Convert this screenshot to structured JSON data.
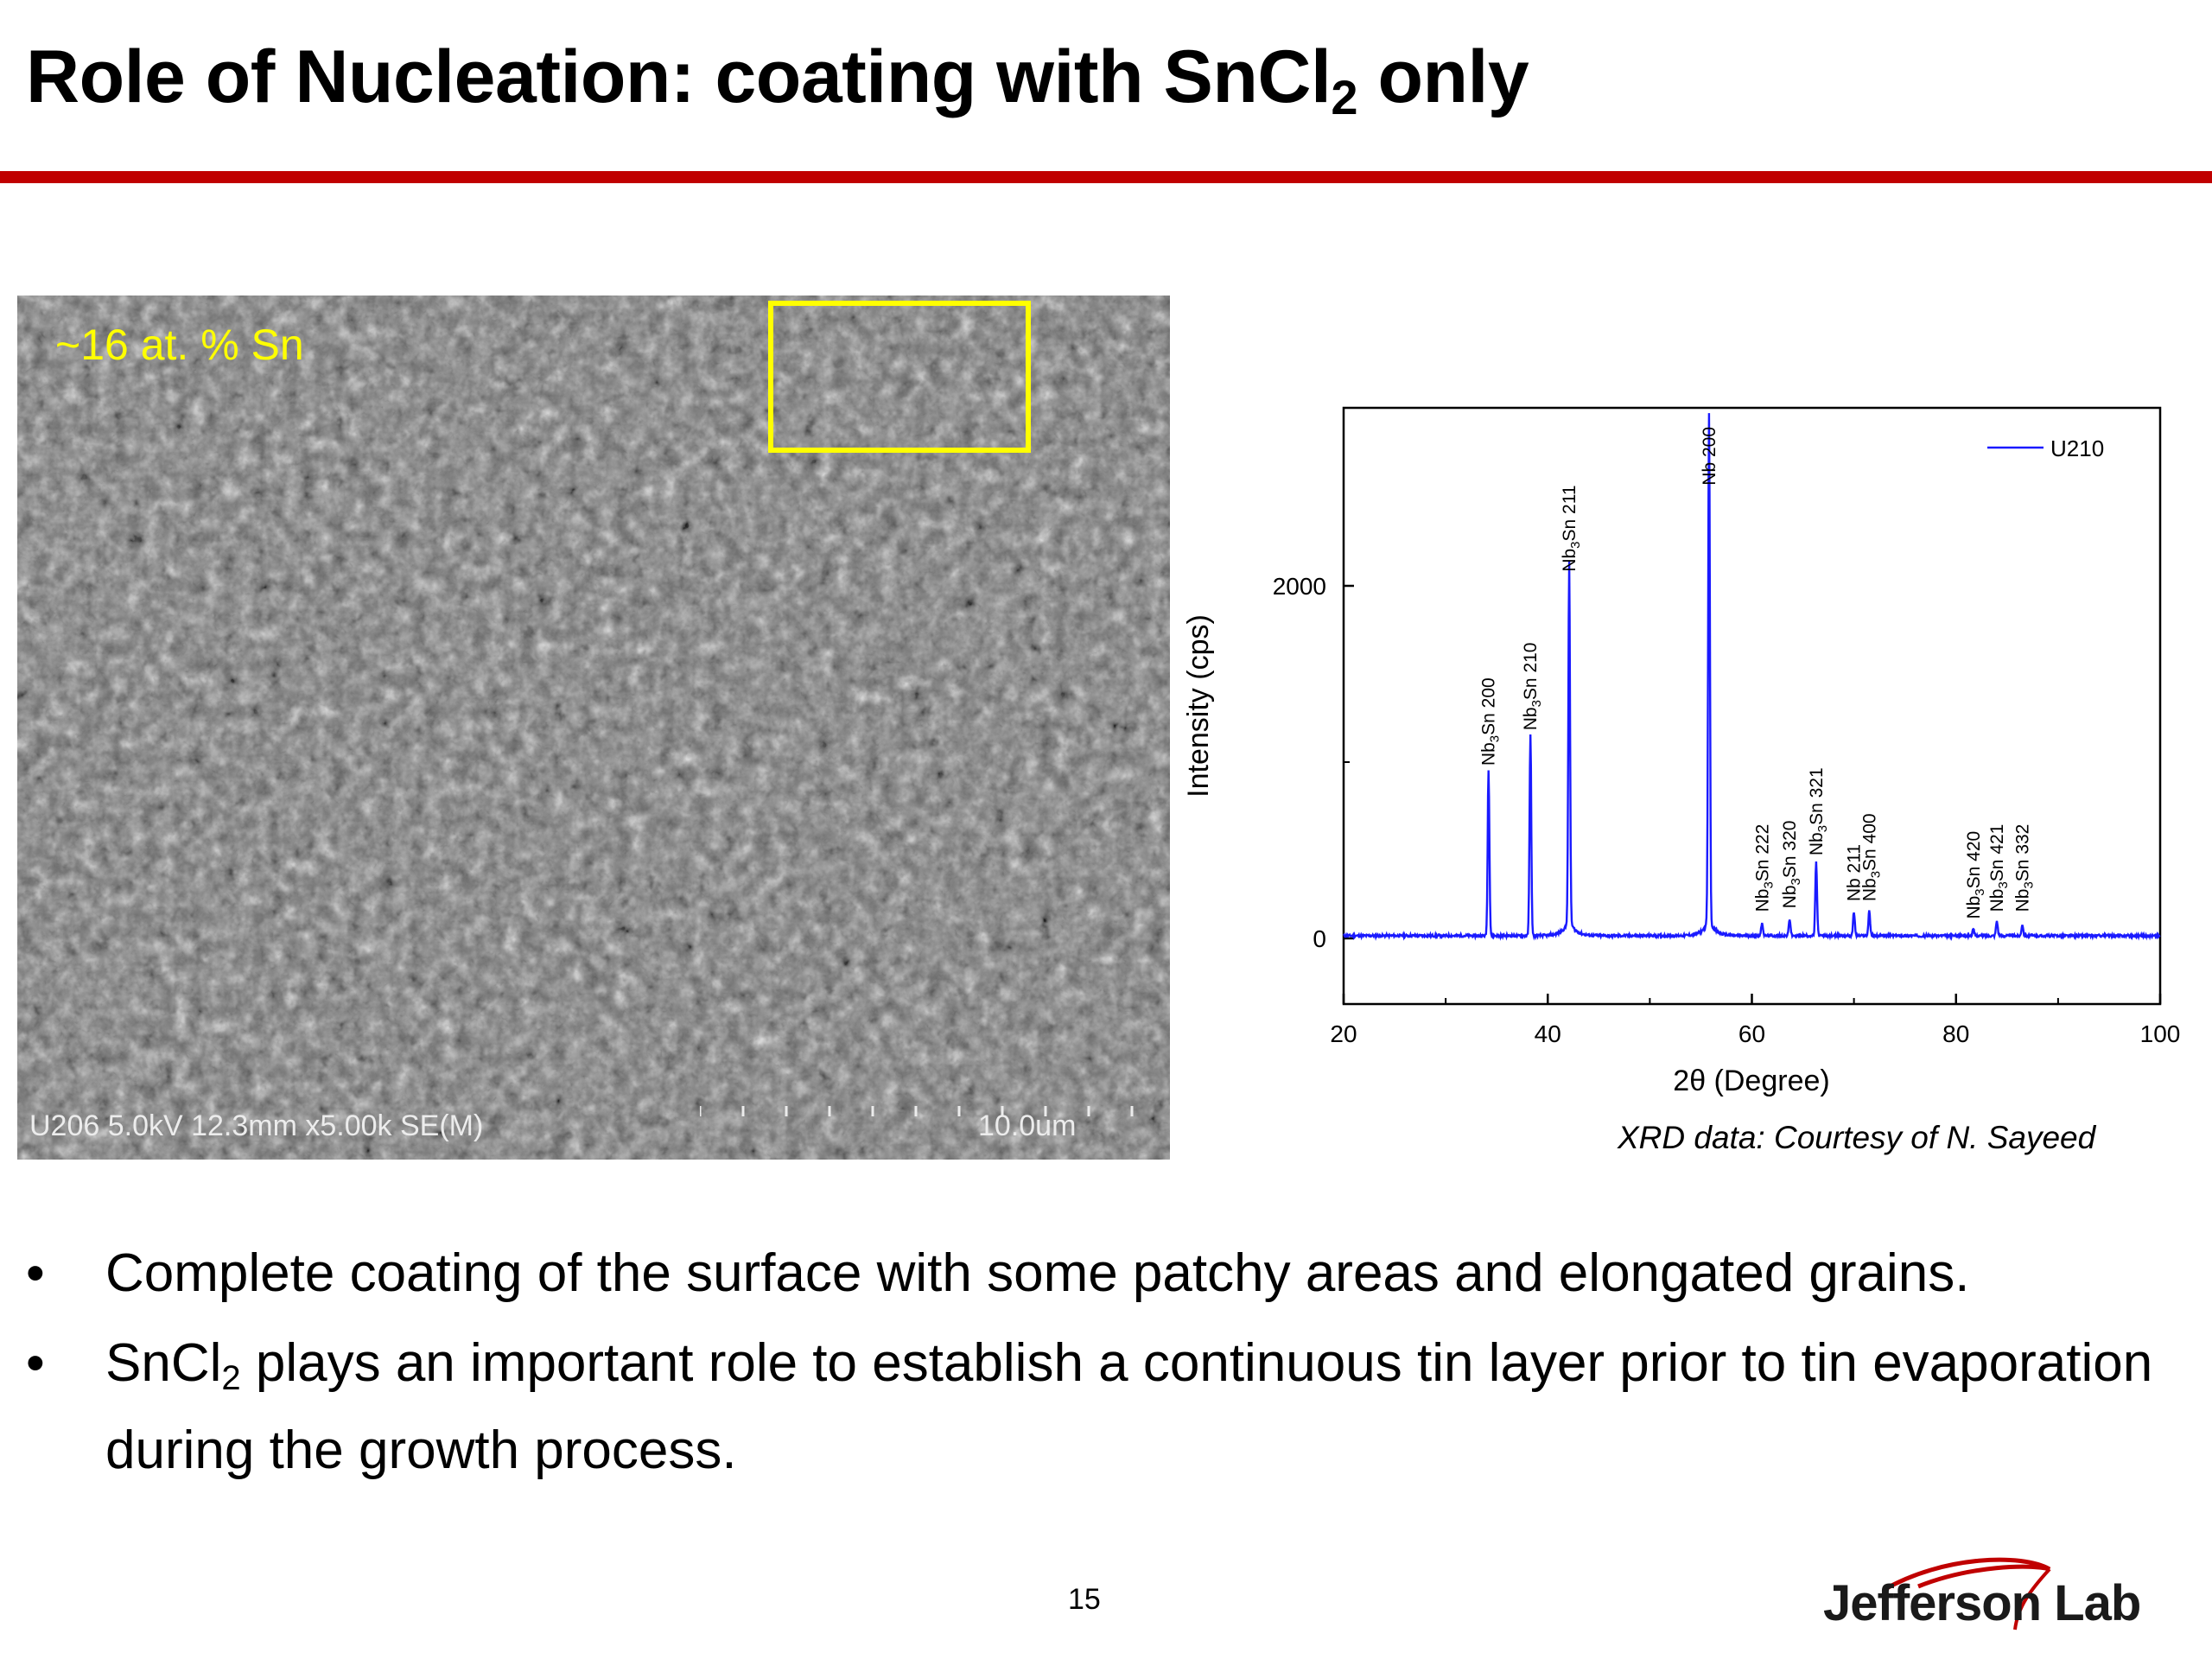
{
  "title": {
    "main": "Role of Nucleation: coating with SnCl",
    "subscript": "2",
    "suffix": " only"
  },
  "sem_image": {
    "composition_label": "~16 at. % Sn",
    "info_bar": "U206 5.0kV 12.3mm x5.00k SE(M)",
    "scale_bar": "10.0um"
  },
  "chart_data": {
    "type": "line",
    "xlabel": "2θ (Degree)",
    "ylabel": "Intensity (cps)",
    "xlim": [
      20,
      100
    ],
    "ylim": [
      0,
      2900
    ],
    "xticks": [
      20,
      40,
      60,
      80,
      100
    ],
    "yticks": [
      0,
      2000
    ],
    "legend": "top-right",
    "series": [
      {
        "name": "U210",
        "color": "#1a1aff",
        "baseline": 15,
        "peaks": [
          {
            "x": 34.2,
            "y": 960
          },
          {
            "x": 38.3,
            "y": 1160
          },
          {
            "x": 42.1,
            "y": 2050
          },
          {
            "x": 55.8,
            "y": 2900
          },
          {
            "x": 61.0,
            "y": 90
          },
          {
            "x": 63.7,
            "y": 110
          },
          {
            "x": 66.3,
            "y": 430
          },
          {
            "x": 70.0,
            "y": 150
          },
          {
            "x": 71.5,
            "y": 160
          },
          {
            "x": 81.7,
            "y": 50
          },
          {
            "x": 84.0,
            "y": 100
          },
          {
            "x": 86.5,
            "y": 80
          }
        ]
      }
    ],
    "annotations": [
      {
        "base": "Nb",
        "sub": "3",
        "rest": "Sn 200",
        "x": 34.2,
        "y": 980
      },
      {
        "base": "Nb",
        "sub": "3",
        "rest": "Sn 210",
        "x": 38.3,
        "y": 1180
      },
      {
        "base": "Nb",
        "sub": "3",
        "rest": "Sn 211",
        "x": 42.1,
        "y": 2080
      },
      {
        "base": "Nb 200",
        "sub": "",
        "rest": "",
        "x": 55.8,
        "y": 2570
      },
      {
        "base": "Nb",
        "sub": "3",
        "rest": "Sn 222",
        "x": 61.0,
        "y": 150
      },
      {
        "base": "Nb",
        "sub": "3",
        "rest": "Sn 320",
        "x": 63.7,
        "y": 170
      },
      {
        "base": "Nb",
        "sub": "3",
        "rest": "Sn 321",
        "x": 66.3,
        "y": 470
      },
      {
        "base": "Nb 211",
        "sub": "",
        "rest": "",
        "x": 70.0,
        "y": 210
      },
      {
        "base": "Nb",
        "sub": "3",
        "rest": "Sn 400",
        "x": 71.5,
        "y": 210
      },
      {
        "base": "Nb",
        "sub": "3",
        "rest": "Sn 420",
        "x": 81.7,
        "y": 110
      },
      {
        "base": "Nb",
        "sub": "3",
        "rest": "Sn 421",
        "x": 84.0,
        "y": 150
      },
      {
        "base": "Nb",
        "sub": "3",
        "rest": "Sn 332",
        "x": 86.5,
        "y": 150
      }
    ]
  },
  "courtesy": "XRD data: Courtesy of N. Sayeed",
  "bullets": [
    {
      "symbol": "•",
      "before": "Complete coating of the surface with some patchy areas and elongated grains.",
      "sub": "",
      "after": ""
    },
    {
      "symbol": "•",
      "before": "SnCl",
      "sub": "2",
      "after": " plays an important role to establish a continuous tin layer prior to tin evaporation during the growth process."
    }
  ],
  "page_number": "15",
  "logo": {
    "text": "Jefferson Lab",
    "accent_color": "#c00000"
  }
}
